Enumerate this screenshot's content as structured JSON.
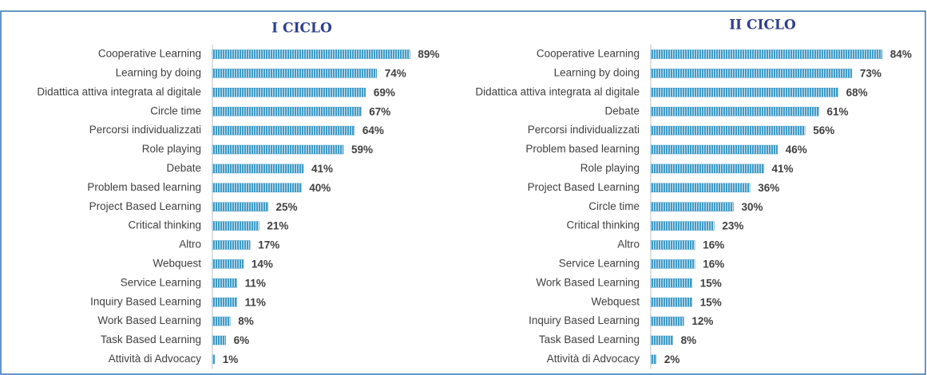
{
  "chart_data": [
    {
      "type": "bar",
      "title": "I CICLO",
      "color": "#3f9bc8",
      "xlim": [
        0,
        100
      ],
      "categories": [
        "Cooperative Learning",
        "Learning by doing",
        "Didattica attiva integrata al digitale",
        "Circle time",
        "Percorsi individualizzati",
        "Role playing",
        "Debate",
        "Problem based learning",
        "Project Based Learning",
        "Critical thinking",
        "Altro",
        "Webquest",
        "Service Learning",
        "Inquiry Based Learning",
        "Work Based Learning",
        "Task Based Learning",
        "Attività di Advocacy"
      ],
      "values": [
        89,
        74,
        69,
        67,
        64,
        59,
        41,
        40,
        25,
        21,
        17,
        14,
        11,
        11,
        8,
        6,
        1
      ],
      "value_labels": [
        "89%",
        "74%",
        "69%",
        "67%",
        "64%",
        "59%",
        "41%",
        "40%",
        "25%",
        "21%",
        "17%",
        "14%",
        "11%",
        "11%",
        "8%",
        "6%",
        "1%"
      ]
    },
    {
      "type": "bar",
      "title": "II CICLO",
      "color": "#3f9bc8",
      "xlim": [
        0,
        100
      ],
      "categories": [
        "Cooperative Learning",
        "Learning by doing",
        "Didattica attiva integrata al digitale",
        "Debate",
        "Percorsi individualizzati",
        "Problem based learning",
        "Role playing",
        "Project Based Learning",
        "Circle time",
        "Critical thinking",
        "Altro",
        "Service Learning",
        "Work Based Learning",
        "Webquest",
        "Inquiry Based Learning",
        "Task Based Learning",
        "Attività di Advocacy"
      ],
      "values": [
        84,
        73,
        68,
        61,
        56,
        46,
        41,
        36,
        30,
        23,
        16,
        16,
        15,
        15,
        12,
        8,
        2
      ],
      "value_labels": [
        "84%",
        "73%",
        "68%",
        "61%",
        "56%",
        "46%",
        "41%",
        "36%",
        "30%",
        "23%",
        "16%",
        "16%",
        "15%",
        "15%",
        "12%",
        "8%",
        "2%"
      ]
    }
  ]
}
